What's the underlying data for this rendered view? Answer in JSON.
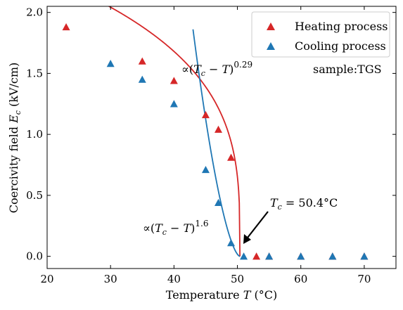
{
  "chart_data": {
    "type": "scatter",
    "xlabel": "Temperature T  (°C)",
    "ylabel": "Coercivity field E_c  (kV/cm)",
    "xlim": [
      20,
      75
    ],
    "ylim": [
      -0.1,
      2.05
    ],
    "xticks": [
      20,
      30,
      40,
      50,
      60,
      70
    ],
    "yticks": [
      0.0,
      0.5,
      1.0,
      1.5,
      2.0
    ],
    "xtick_labels": [
      "20",
      "30",
      "40",
      "50",
      "60",
      "70"
    ],
    "ytick_labels": [
      "0.0",
      "0.5",
      "1.0",
      "1.5",
      "2.0"
    ],
    "grid": false,
    "legend_position": "top-right",
    "series": [
      {
        "name": "Heating process",
        "marker": "triangle",
        "color": "#d62728",
        "x": [
          23,
          35,
          40,
          45,
          47,
          49,
          53,
          55,
          60,
          65,
          70
        ],
        "y": [
          1.88,
          1.6,
          1.44,
          1.16,
          1.04,
          0.81,
          0.0,
          0.0,
          0.0,
          0.0,
          0.0
        ]
      },
      {
        "name": "Cooling process",
        "marker": "triangle",
        "color": "#1f77b4",
        "x": [
          30,
          35,
          40,
          45,
          47,
          49,
          51,
          55,
          60,
          65,
          70
        ],
        "y": [
          1.58,
          1.45,
          1.25,
          0.71,
          0.44,
          0.11,
          0.0,
          0.0,
          0.0,
          0.0,
          0.0
        ]
      }
    ],
    "fits": [
      {
        "label": "∝(T_c − T)^0.29",
        "label_parts": {
          "prefix": "∝(",
          "T1": "T",
          "c": "c",
          "minus": " − ",
          "T2": "T",
          "close": ")",
          "exp": "0.29"
        },
        "color": "#d62728",
        "Tc": 50.4,
        "exponent": 0.29,
        "coefficient": 0.852,
        "x_start": 20,
        "x_end": 50.4
      },
      {
        "label": "∝(T_c − T)^1.6",
        "label_parts": {
          "prefix": "∝(",
          "T1": "T",
          "c": "c",
          "minus": " − ",
          "T2": "T",
          "close": ")",
          "exp": "1.6"
        },
        "color": "#1f77b4",
        "Tc": 50.4,
        "exponent": 1.6,
        "coefficient": 0.0757,
        "x_start": 43,
        "x_end": 50.4
      }
    ],
    "annotations": [
      {
        "id": "sample",
        "text": "sample:TGS"
      },
      {
        "id": "tc",
        "text_prefix": "T",
        "text_sub": "c",
        "text_suffix": " = 50.4°C",
        "arrow_to_x": 50.4,
        "arrow_to_y": 0.08
      }
    ]
  }
}
